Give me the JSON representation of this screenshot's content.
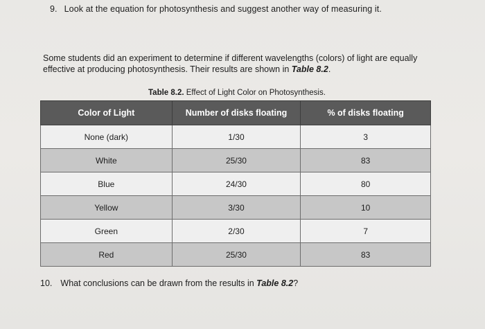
{
  "question9": {
    "number": "9.",
    "text": "Look at the equation for photosynthesis and suggest another way of measuring it."
  },
  "intro": {
    "text_before": "Some students did an experiment to determine if different wavelengths (colors) of light are equally effective at producing photosynthesis. Their results are shown in ",
    "table_ref": "Table 8.2",
    "text_after": "."
  },
  "table": {
    "caption_label": "Table 8.2.",
    "caption_text": " Effect of Light Color on Photosynthesis.",
    "headers": [
      "Color of Light",
      "Number of disks floating",
      "% of disks floating"
    ],
    "rows": [
      {
        "color": "None (dark)",
        "disks": "1/30",
        "percent": "3"
      },
      {
        "color": "White",
        "disks": "25/30",
        "percent": "83"
      },
      {
        "color": "Blue",
        "disks": "24/30",
        "percent": "80"
      },
      {
        "color": "Yellow",
        "disks": "3/30",
        "percent": "10"
      },
      {
        "color": "Green",
        "disks": "2/30",
        "percent": "7"
      },
      {
        "color": "Red",
        "disks": "25/30",
        "percent": "83"
      }
    ]
  },
  "question10": {
    "number": "10.",
    "text_before": "What conclusions can be drawn from the results in ",
    "table_ref": "Table 8.2",
    "text_after": "?"
  }
}
